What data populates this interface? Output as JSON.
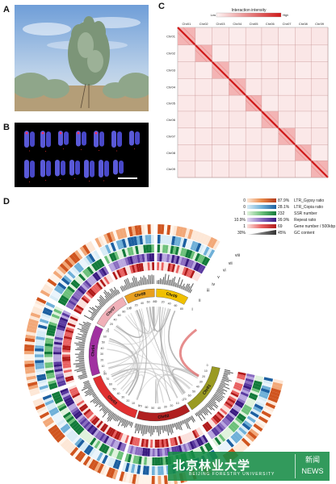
{
  "panels": {
    "a": "A",
    "b": "B",
    "c": "C",
    "d": "D"
  },
  "heatmap": {
    "title": "Interaction intensity",
    "low": "Low",
    "high": "High",
    "chromosomes": [
      "Chr01",
      "Chr02",
      "Chr03",
      "Chr04",
      "Chr05",
      "Chr06",
      "Chr07",
      "Chr08",
      "Chr09"
    ]
  },
  "legend": [
    {
      "min": "0",
      "max": "87.9%",
      "label": "LTR_Gypsy ratio",
      "colors": [
        "#fde7d6",
        "#e88a4a",
        "#b33a1a"
      ]
    },
    {
      "min": "0",
      "max": "28.1%",
      "label": "LTR_Copia ratio",
      "colors": [
        "#d8ecf6",
        "#6fb0d8",
        "#1c5fa0"
      ]
    },
    {
      "min": "1",
      "max": "232",
      "label": "SSR number",
      "colors": [
        "#dff2dc",
        "#6cc07a",
        "#127a3a"
      ]
    },
    {
      "min": "10.9%",
      "max": "99.9%",
      "label": "Repeat ratio",
      "colors": [
        "#e4dcf2",
        "#8a6cc0",
        "#3a1a80"
      ]
    },
    {
      "min": "1",
      "max": "69",
      "label": "Gene number / 500kbp",
      "colors": [
        "#fbe0dc",
        "#e86060",
        "#b01a1a"
      ]
    },
    {
      "min": "30%",
      "max": "45%",
      "label": "GC content",
      "colors": [
        "#eeeeee",
        "#777777",
        "#333333"
      ]
    }
  ],
  "circos": {
    "chromosomes": [
      {
        "name": "Chr01",
        "color": "#9a9a22"
      },
      {
        "name": "Chr02",
        "color": "#b02020"
      },
      {
        "name": "Chr03",
        "color": "#e03030"
      },
      {
        "name": "Chr04",
        "color": "#a030a0"
      },
      {
        "name": "Chr07",
        "color": "#f0b0b8"
      },
      {
        "name": "Chr08",
        "color": "#e8a020"
      },
      {
        "name": "Chr09",
        "color": "#f0c000"
      }
    ],
    "track_labels": [
      "i",
      "ii",
      "iii",
      "iv",
      "v",
      "vi",
      "vii",
      "viii"
    ],
    "ticks": [
      "0",
      "10",
      "20",
      "30",
      "40",
      "50",
      "60",
      "70",
      "80",
      "90",
      "100"
    ]
  },
  "watermark": {
    "chinese": "北京林业大学",
    "english": "BEIJING FORESTRY UNIVERSITY",
    "news_cn": "新闻",
    "news_en": "NEWS"
  }
}
